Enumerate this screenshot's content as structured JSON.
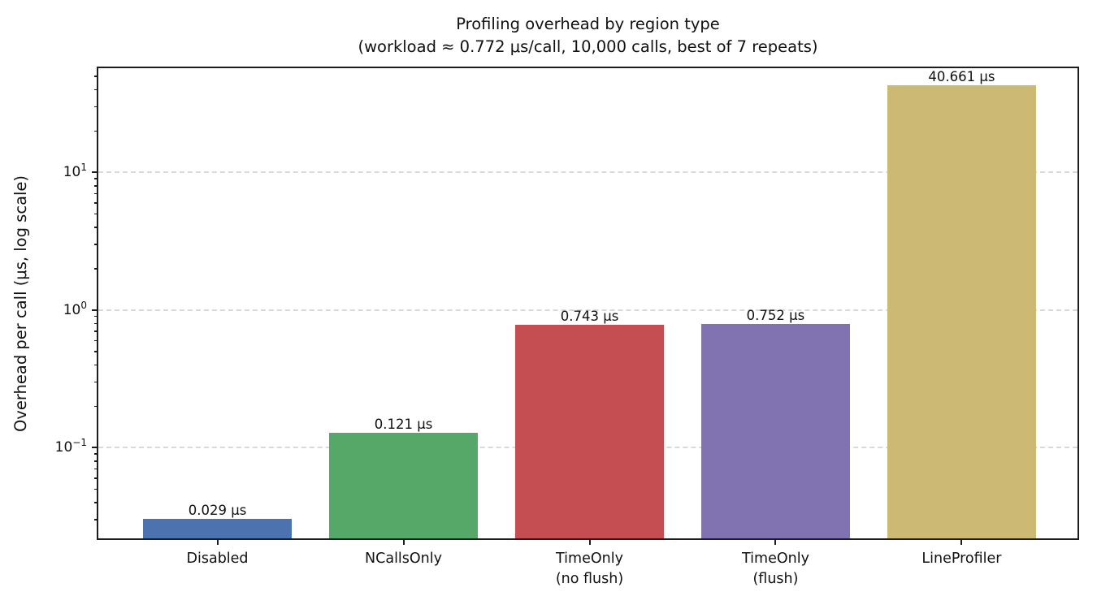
{
  "figure": {
    "title_line1": "Profiling overhead by region type",
    "title_line2": "(workload ≈ 0.772 μs/call, 10,000 calls, best of 7 repeats)",
    "ylabel": "Overhead per call (μs, log scale)"
  },
  "chart_data": {
    "type": "bar",
    "title": "Profiling overhead by region type\n(workload ≈ 0.772 μs/call, 10,000 calls, best of 7 repeats)",
    "xlabel": "",
    "ylabel": "Overhead per call (μs, log scale)",
    "yscale": "log",
    "categories": [
      "Disabled",
      "NCallsOnly",
      "TimeOnly\n(no flush)",
      "TimeOnly\n(flush)",
      "LineProfiler"
    ],
    "values": [
      0.029,
      0.121,
      0.743,
      0.752,
      40.661
    ],
    "bar_labels": [
      "0.029 μs",
      "0.121 μs",
      "0.743 μs",
      "0.752 μs",
      "40.661 μs"
    ],
    "bar_colors": [
      "#4C72B0",
      "#55A868",
      "#C44E52",
      "#8172B2",
      "#CCB974"
    ],
    "ylim": [
      0.0208,
      57.3
    ],
    "xlim": [
      -0.64,
      4.64
    ],
    "bar_width_fraction": 0.8,
    "y_ticks": [
      {
        "value": 10,
        "base": "10",
        "exp": "1"
      },
      {
        "value": 1,
        "base": "10",
        "exp": "0"
      },
      {
        "value": 0.1,
        "base": "10",
        "exp": "−1"
      }
    ],
    "y_minor_tick_decades": [
      0.01,
      0.1,
      1,
      10
    ],
    "grid": "dashed horizontal lines at major y ticks, drawn below bars",
    "legend": "none"
  }
}
